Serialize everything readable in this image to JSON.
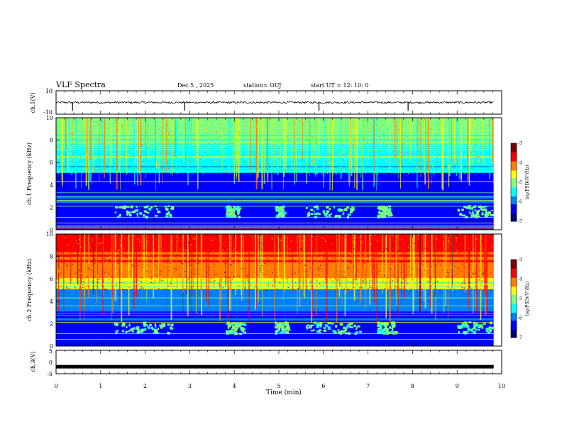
{
  "header": {
    "title": "VLF Spectra",
    "date": "Dec.5 , 2025",
    "station": "station= OUJ",
    "start_time": "start UT = 12: 10: 0"
  },
  "chart_data": [
    {
      "type": "line",
      "ylabel": "ch.1(V)",
      "ylim": [
        -10,
        10
      ],
      "y_ticks": [
        "10",
        "-10"
      ],
      "baseline": 0,
      "spikes_at_min": [
        0.37,
        2.88,
        5.9,
        7.9
      ]
    },
    {
      "type": "heatmap",
      "ylabel": "ch.1 Frequency (kHz)",
      "ylim": [
        0,
        10
      ],
      "y_ticks": [
        "10",
        "8",
        "6",
        "4",
        "2",
        "0"
      ],
      "colorbar": {
        "label": "log(PSD)(V²/Hz)",
        "range": [
          -7,
          -3
        ],
        "ticks": [
          "-3",
          "-4",
          "-5",
          "-6",
          "-7"
        ]
      },
      "chorus_bursts_min": [
        [
          1.3,
          2.6
        ],
        [
          3.8,
          4.1
        ],
        [
          4.9,
          5.1
        ],
        [
          5.6,
          6.7
        ],
        [
          7.2,
          7.5
        ],
        [
          9.0,
          9.8
        ]
      ]
    },
    {
      "type": "heatmap",
      "ylabel": "ch.2 Frequency (kHz)",
      "ylim": [
        0,
        10
      ],
      "y_ticks": [
        "10",
        "8",
        "6",
        "4",
        "2",
        "0"
      ],
      "colorbar": {
        "label": "log(PSD)(V²/Hz)",
        "range": [
          -7,
          -3
        ],
        "ticks": [
          "-3",
          "-4",
          "-5",
          "-6",
          "-7"
        ]
      },
      "chorus_bursts_min": [
        [
          1.3,
          2.6
        ],
        [
          3.8,
          4.2
        ],
        [
          4.9,
          5.2
        ],
        [
          5.6,
          6.8
        ],
        [
          7.2,
          7.6
        ],
        [
          9.0,
          9.8
        ]
      ]
    },
    {
      "type": "line",
      "ylabel": "ch.3(V)",
      "ylim": [
        -5,
        5
      ],
      "y_ticks": [
        "5",
        "0",
        "-5"
      ],
      "level": -2
    }
  ],
  "x_axis": {
    "label": "Time (min)",
    "xlim": [
      0,
      10
    ],
    "ticks": [
      "0",
      "1",
      "2",
      "3",
      "4",
      "5",
      "6",
      "7",
      "8",
      "9",
      "10"
    ]
  },
  "colors": {
    "jet": [
      "#00007f",
      "#0000ff",
      "#007fff",
      "#00ffff",
      "#7fff7f",
      "#ffff00",
      "#ff7f00",
      "#ff0000",
      "#7f0000"
    ]
  }
}
